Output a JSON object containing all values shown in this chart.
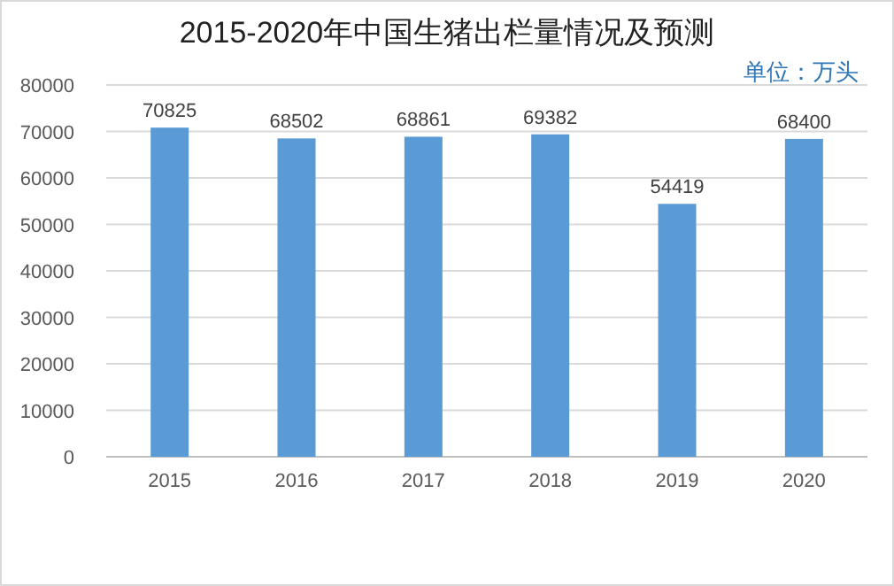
{
  "chart_data": {
    "type": "bar",
    "title": "2015-2020年中国生猪出栏量情况及预测",
    "annotations": [
      "单位：万头"
    ],
    "categories": [
      "2015",
      "2016",
      "2017",
      "2018",
      "2019",
      "2020"
    ],
    "values": [
      70825,
      68502,
      68861,
      69382,
      54419,
      68400
    ],
    "color": "#5b9bd5",
    "ylim": [
      0,
      80000
    ],
    "yticks": [
      0,
      10000,
      20000,
      30000,
      40000,
      50000,
      60000,
      70000,
      80000
    ],
    "grid": "y",
    "data_labels": true
  }
}
